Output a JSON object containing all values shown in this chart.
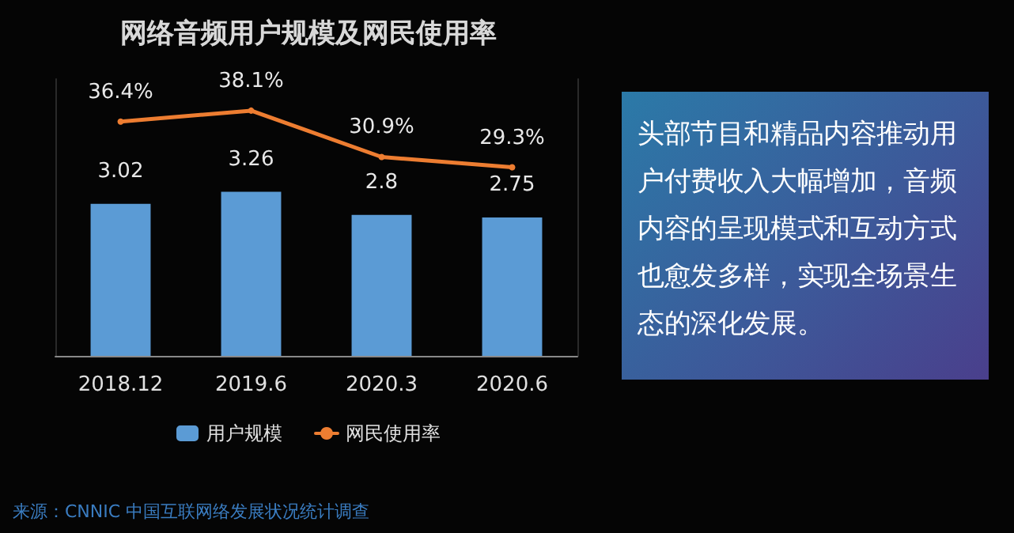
{
  "chart_data": [
    {
      "type": "bar",
      "title": "网络音频用户规模及网民使用率",
      "categories": [
        "2018.12",
        "2019.6",
        "2020.3",
        "2020.6"
      ],
      "series": [
        {
          "name": "用户规模",
          "type": "bar",
          "color": "#5b9bd5",
          "values": [
            3.02,
            3.26,
            2.8,
            2.75
          ],
          "value_labels": [
            "3.02",
            "3.26",
            "2.8",
            "2.75"
          ]
        },
        {
          "name": "网民使用率",
          "type": "line",
          "axis": "y2",
          "color": "#ed7d31",
          "values": [
            36.4,
            38.1,
            30.9,
            29.3
          ],
          "value_labels": [
            "36.4%",
            "38.1%",
            "30.9%",
            "29.3%"
          ]
        }
      ],
      "ylim": [
        0,
        5.5
      ],
      "y2lim": [
        0,
        43
      ],
      "tick_labels": "x",
      "grid": false,
      "legend": "bottom",
      "marker": "circle",
      "line_style": "solid",
      "annotations": [
        "来源：CNNIC 中国互联网络发展状况统计调查"
      ]
    },
    {
      "type": "other",
      "annotations": [
        "头部节目和精品内容推动用户付费收入大幅增加，音频内容的呈现模式和互动方式也愈发多样，实现全场景生态的深化发展。"
      ]
    }
  ]
}
